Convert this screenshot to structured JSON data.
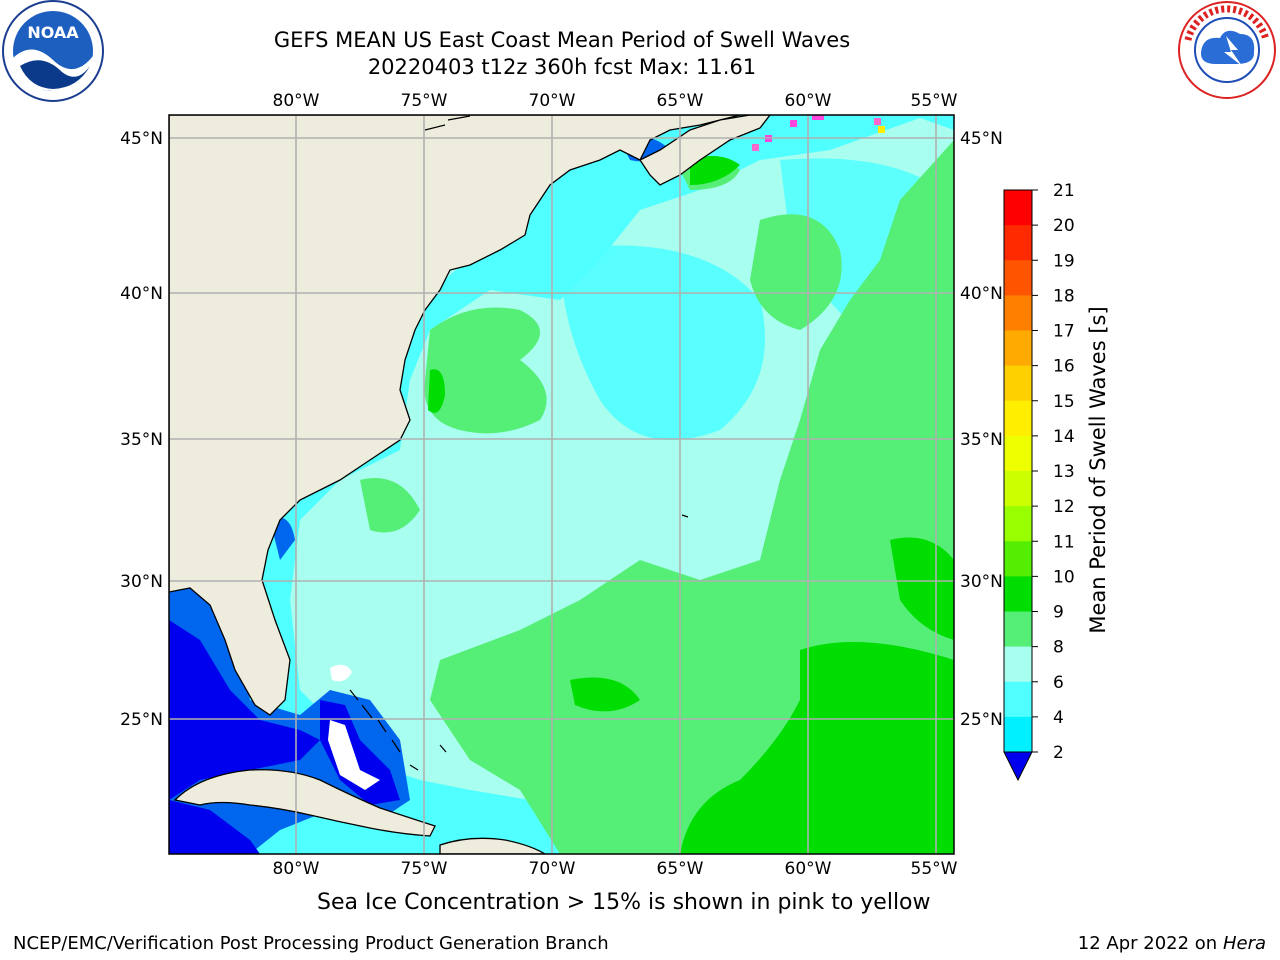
{
  "header": {
    "title_line1": "GEFS MEAN US East Coast Mean Period of Swell Waves",
    "title_line2": "20220403 t12z 360h fcst   Max: 11.61"
  },
  "logos": {
    "left": {
      "icon": "noaa-logo",
      "text": "NOAA"
    },
    "right": {
      "icon": "national-weather-service-logo",
      "text": "NATIONAL WEATHER SERVICE"
    }
  },
  "map": {
    "lon_ticks": [
      "80°W",
      "75°W",
      "70°W",
      "65°W",
      "60°W",
      "55°W"
    ],
    "lat_ticks": [
      "45°N",
      "40°N",
      "35°N",
      "30°N",
      "25°N"
    ],
    "land_color": "#eeecdc",
    "grid_color": "#b0b0b0"
  },
  "colorbar": {
    "title": "Mean Period of Swell Waves [s]",
    "levels": [
      "21",
      "20",
      "19",
      "18",
      "17",
      "16",
      "15",
      "14",
      "13",
      "12",
      "11",
      "10",
      "9",
      "8",
      "6",
      "4",
      "2"
    ],
    "colors": [
      "#ff0000",
      "#ff2a00",
      "#ff5500",
      "#ff8000",
      "#ffaa00",
      "#ffd000",
      "#ffee00",
      "#eeff00",
      "#ccff00",
      "#99ff00",
      "#55ee00",
      "#00dd00",
      "#55ee77",
      "#a8ffef",
      "#50ffff",
      "#00f0ff",
      "#0099ff",
      "#0066ee",
      "#0000ee"
    ]
  },
  "note": "Sea Ice Concentration > 15% is shown in pink to yellow",
  "footer": {
    "left": "NCEP/EMC/Verification Post Processing Product Generation Branch",
    "right_prefix": "12 Apr 2022 on ",
    "right_italic": "Hera"
  }
}
